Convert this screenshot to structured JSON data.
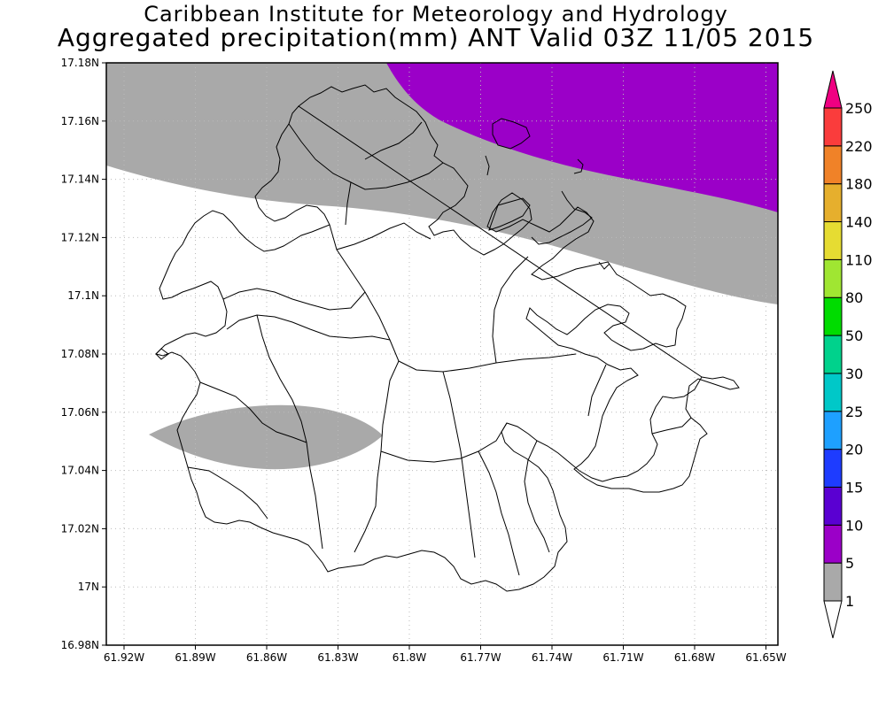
{
  "header": {
    "title_line1": "Caribbean Institute for Meteorology and Hydrology",
    "title_line2": "Aggregated precipitation(mm) ANT Valid 03Z 11/05 2015"
  },
  "map": {
    "region": "ANT",
    "lat_ticks": [
      "17.18N",
      "17.16N",
      "17.14N",
      "17.12N",
      "17.1N",
      "17.08N",
      "17.06N",
      "17.04N",
      "17.02N",
      "17N",
      "16.98N"
    ],
    "lon_ticks": [
      "61.92W",
      "61.89W",
      "61.86W",
      "61.83W",
      "61.8W",
      "61.77W",
      "61.74W",
      "61.71W",
      "61.68W",
      "61.65W"
    ],
    "lat_range": [
      16.98,
      17.18
    ],
    "lon_range": [
      -61.92,
      -61.65
    ],
    "grid": "dotted"
  },
  "legend": {
    "bins": [
      {
        "label": "1",
        "color": "#ffffff"
      },
      {
        "label": "5",
        "color": "#a9a9a9"
      },
      {
        "label": "10",
        "color": "#9b00c8"
      },
      {
        "label": "15",
        "color": "#5a00d2"
      },
      {
        "label": "20",
        "color": "#1e3cff"
      },
      {
        "label": "25",
        "color": "#1ea0ff"
      },
      {
        "label": "30",
        "color": "#00c8c8"
      },
      {
        "label": "50",
        "color": "#00d28c"
      },
      {
        "label": "80",
        "color": "#00dc00"
      },
      {
        "label": "110",
        "color": "#a0e632"
      },
      {
        "label": "140",
        "color": "#e6dc32"
      },
      {
        "label": "180",
        "color": "#e6af2d"
      },
      {
        "label": "220",
        "color": "#f08228"
      },
      {
        "label": "250",
        "color": "#fa3c3c"
      }
    ],
    "top_color": "#f00082"
  },
  "colors": {
    "gray_area": "#a9a9a9",
    "purple_area": "#9b00c8",
    "grid": "#bbbbbb",
    "frame": "#000000"
  }
}
